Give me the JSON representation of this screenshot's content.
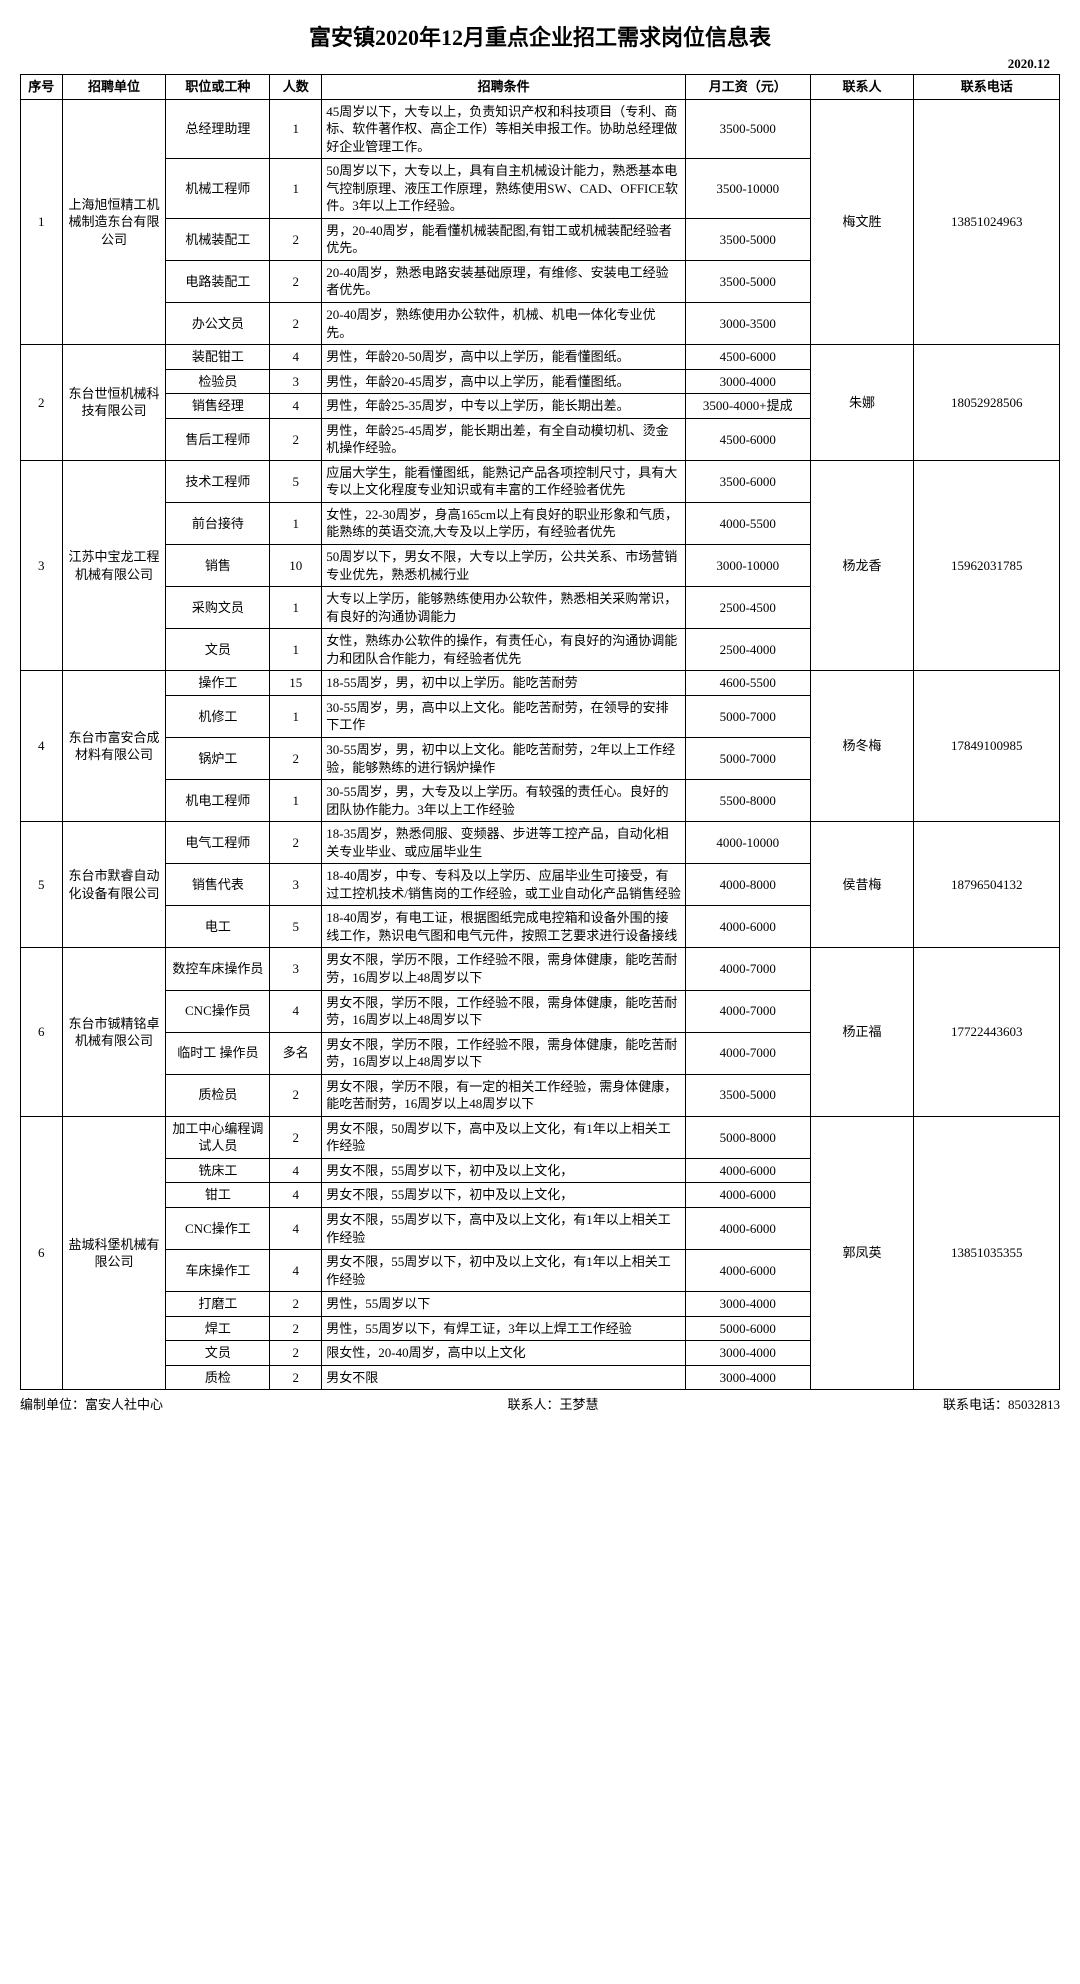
{
  "title": "富安镇2020年12月重点企业招工需求岗位信息表",
  "date": "2020.12",
  "headers": {
    "idx": "序号",
    "company": "招聘单位",
    "position": "职位或工种",
    "count": "人数",
    "req": "招聘条件",
    "salary": "月工资（元）",
    "contact": "联系人",
    "phone": "联系电话"
  },
  "companies": [
    {
      "idx": "1",
      "name": "上海旭恒精工机械制造东台有限公司",
      "contact": "梅文胜",
      "phone": "13851024963",
      "jobs": [
        {
          "pos": "总经理助理",
          "cnt": "1",
          "req": "45周岁以下，大专以上，负责知识产权和科技项目（专利、商标、软件著作权、高企工作）等相关申报工作。协助总经理做好企业管理工作。",
          "sal": "3500-5000"
        },
        {
          "pos": "机械工程师",
          "cnt": "1",
          "req": "50周岁以下，大专以上，具有自主机械设计能力，熟悉基本电气控制原理、液压工作原理，熟练使用SW、CAD、OFFICE软件。3年以上工作经验。",
          "sal": "3500-10000"
        },
        {
          "pos": "机械装配工",
          "cnt": "2",
          "req": "男，20-40周岁，能看懂机械装配图,有钳工或机械装配经验者优先。",
          "sal": "3500-5000"
        },
        {
          "pos": "电路装配工",
          "cnt": "2",
          "req": "20-40周岁，熟悉电路安装基础原理，有维修、安装电工经验者优先。",
          "sal": "3500-5000"
        },
        {
          "pos": "办公文员",
          "cnt": "2",
          "req": "20-40周岁，熟练使用办公软件，机械、机电一体化专业优先。",
          "sal": "3000-3500"
        }
      ]
    },
    {
      "idx": "2",
      "name": "东台世恒机械科技有限公司",
      "contact": "朱娜",
      "phone": "18052928506",
      "jobs": [
        {
          "pos": "装配钳工",
          "cnt": "4",
          "req": "男性，年龄20-50周岁，高中以上学历，能看懂图纸。",
          "sal": "4500-6000"
        },
        {
          "pos": "检验员",
          "cnt": "3",
          "req": "男性，年龄20-45周岁，高中以上学历，能看懂图纸。",
          "sal": "3000-4000"
        },
        {
          "pos": "销售经理",
          "cnt": "4",
          "req": "男性，年龄25-35周岁，中专以上学历，能长期出差。",
          "sal": "3500-4000+提成"
        },
        {
          "pos": "售后工程师",
          "cnt": "2",
          "req": "男性，年龄25-45周岁，能长期出差，有全自动模切机、烫金机操作经验。",
          "sal": "4500-6000"
        }
      ]
    },
    {
      "idx": "3",
      "name": "江苏中宝龙工程机械有限公司",
      "contact": "杨龙香",
      "phone": "15962031785",
      "jobs": [
        {
          "pos": "技术工程师",
          "cnt": "5",
          "req": "应届大学生，能看懂图纸，能熟记产品各项控制尺寸，具有大专以上文化程度专业知识或有丰富的工作经验者优先",
          "sal": "3500-6000"
        },
        {
          "pos": "前台接待",
          "cnt": "1",
          "req": "女性，22-30周岁，身高165cm以上有良好的职业形象和气质，能熟练的英语交流,大专及以上学历，有经验者优先",
          "sal": "4000-5500"
        },
        {
          "pos": "销售",
          "cnt": "10",
          "req": "50周岁以下，男女不限，大专以上学历，公共关系、市场营销专业优先，熟悉机械行业",
          "sal": "3000-10000"
        },
        {
          "pos": "采购文员",
          "cnt": "1",
          "req": "大专以上学历，能够熟练使用办公软件，熟悉相关采购常识，有良好的沟通协调能力",
          "sal": "2500-4500"
        },
        {
          "pos": "文员",
          "cnt": "1",
          "req": "女性，熟练办公软件的操作，有责任心，有良好的沟通协调能力和团队合作能力，有经验者优先",
          "sal": "2500-4000"
        }
      ]
    },
    {
      "idx": "4",
      "name": "东台市富安合成材料有限公司",
      "contact": "杨冬梅",
      "phone": "17849100985",
      "jobs": [
        {
          "pos": "操作工",
          "cnt": "15",
          "req": "18-55周岁，男，初中以上学历。能吃苦耐劳",
          "sal": "4600-5500"
        },
        {
          "pos": "机修工",
          "cnt": "1",
          "req": "30-55周岁，男，高中以上文化。能吃苦耐劳，在领导的安排下工作",
          "sal": "5000-7000"
        },
        {
          "pos": "锅炉工",
          "cnt": "2",
          "req": "30-55周岁，男，初中以上文化。能吃苦耐劳，2年以上工作经验，能够熟练的进行锅炉操作",
          "sal": "5000-7000"
        },
        {
          "pos": "机电工程师",
          "cnt": "1",
          "req": "30-55周岁，男，大专及以上学历。有较强的责任心。良好的团队协作能力。3年以上工作经验",
          "sal": "5500-8000"
        }
      ]
    },
    {
      "idx": "5",
      "name": "东台市默睿自动化设备有限公司",
      "contact": "侯昔梅",
      "phone": "18796504132",
      "jobs": [
        {
          "pos": "电气工程师",
          "cnt": "2",
          "req": "18-35周岁，熟悉伺服、变频器、步进等工控产品，自动化相关专业毕业、或应届毕业生",
          "sal": "4000-10000"
        },
        {
          "pos": "销售代表",
          "cnt": "3",
          "req": "18-40周岁，中专、专科及以上学历、应届毕业生可接受，有过工控机技术/销售岗的工作经验，或工业自动化产品销售经验",
          "sal": "4000-8000"
        },
        {
          "pos": "电工",
          "cnt": "5",
          "req": "18-40周岁，有电工证，根据图纸完成电控箱和设备外围的接线工作，熟识电气图和电气元件，按照工艺要求进行设备接线",
          "sal": "4000-6000"
        }
      ]
    },
    {
      "idx": "6",
      "name": "东台市铖精铭卓机械有限公司",
      "contact": "杨正福",
      "phone": "17722443603",
      "jobs": [
        {
          "pos": "数控车床操作员",
          "cnt": "3",
          "req": "男女不限，学历不限，工作经验不限，需身体健康，能吃苦耐劳，16周岁以上48周岁以下",
          "sal": "4000-7000"
        },
        {
          "pos": "CNC操作员",
          "cnt": "4",
          "req": "男女不限，学历不限，工作经验不限，需身体健康，能吃苦耐劳，16周岁以上48周岁以下",
          "sal": "4000-7000"
        },
        {
          "pos": "临时工 操作员",
          "cnt": "多名",
          "req": "男女不限，学历不限，工作经验不限，需身体健康，能吃苦耐劳，16周岁以上48周岁以下",
          "sal": "4000-7000"
        },
        {
          "pos": "质检员",
          "cnt": "2",
          "req": "男女不限，学历不限，有一定的相关工作经验，需身体健康，能吃苦耐劳，16周岁以上48周岁以下",
          "sal": "3500-5000"
        }
      ]
    },
    {
      "idx": "6",
      "name": "盐城科堡机械有限公司",
      "contact": "郭凤英",
      "phone": "13851035355",
      "jobs": [
        {
          "pos": "加工中心编程调试人员",
          "cnt": "2",
          "req": "男女不限，50周岁以下，高中及以上文化，有1年以上相关工作经验",
          "sal": "5000-8000"
        },
        {
          "pos": "铣床工",
          "cnt": "4",
          "req": "男女不限，55周岁以下，初中及以上文化，",
          "sal": "4000-6000"
        },
        {
          "pos": "钳工",
          "cnt": "4",
          "req": "男女不限，55周岁以下，初中及以上文化，",
          "sal": "4000-6000"
        },
        {
          "pos": "CNC操作工",
          "cnt": "4",
          "req": "男女不限，55周岁以下，高中及以上文化，有1年以上相关工作经验",
          "sal": "4000-6000"
        },
        {
          "pos": "车床操作工",
          "cnt": "4",
          "req": "男女不限，55周岁以下，初中及以上文化，有1年以上相关工作经验",
          "sal": "4000-6000"
        },
        {
          "pos": "打磨工",
          "cnt": "2",
          "req": "男性，55周岁以下",
          "sal": "3000-4000"
        },
        {
          "pos": "焊工",
          "cnt": "2",
          "req": "男性，55周岁以下，有焊工证，3年以上焊工工作经验",
          "sal": "5000-6000"
        },
        {
          "pos": "文员",
          "cnt": "2",
          "req": "限女性，20-40周岁，高中以上文化",
          "sal": "3000-4000"
        },
        {
          "pos": "质检",
          "cnt": "2",
          "req": "男女不限",
          "sal": "3000-4000"
        }
      ]
    }
  ],
  "footer": {
    "org_label": "编制单位：",
    "org": "富安人社中心",
    "contact_label": "联系人：",
    "contact": "王梦慧",
    "phone_label": "联系电话：",
    "phone": "85032813"
  }
}
